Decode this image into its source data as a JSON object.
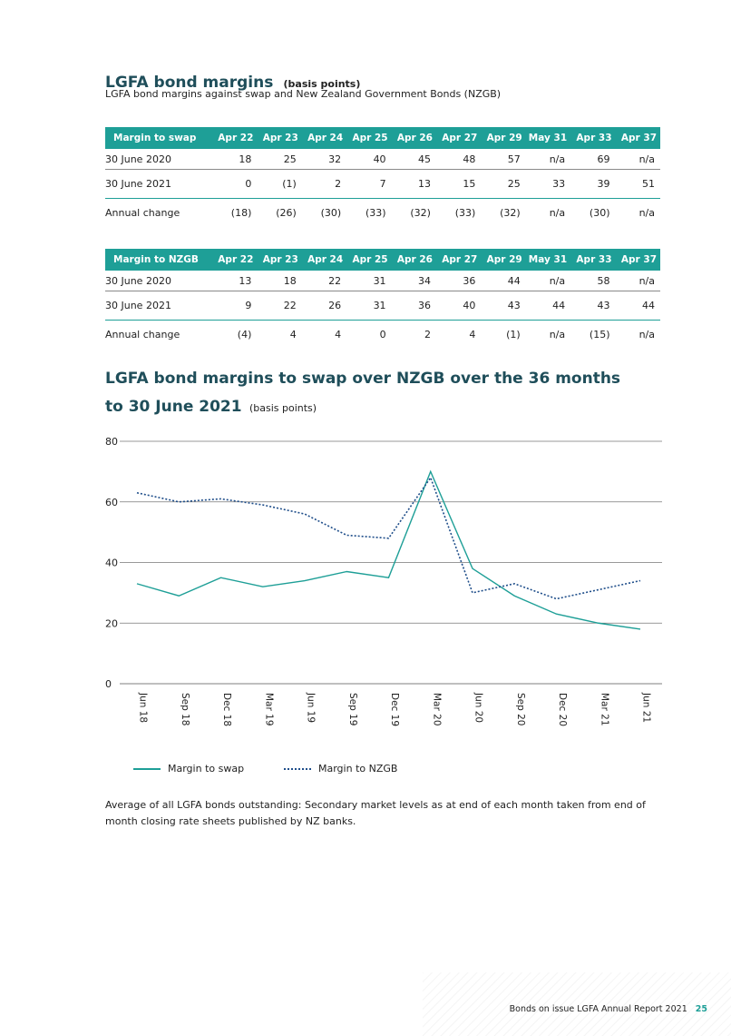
{
  "section": {
    "title": "LGFA bond margins",
    "title_suffix": "(basis points)",
    "subtitle": "LGFA bond margins against swap and New Zealand Government Bonds (NZGB)"
  },
  "tables": {
    "swap": {
      "headers": [
        "Margin to swap",
        "Apr 22",
        "Apr 23",
        "Apr 24",
        "Apr 25",
        "Apr 26",
        "Apr 27",
        "Apr 29",
        "May 31",
        "Apr 33",
        "Apr 37"
      ],
      "rows": [
        [
          "30 June 2020",
          "18",
          "25",
          "32",
          "40",
          "45",
          "48",
          "57",
          "n/a",
          "69",
          "n/a"
        ],
        [
          "30 June 2021",
          "0",
          "(1)",
          "2",
          "7",
          "13",
          "15",
          "25",
          "33",
          "39",
          "51"
        ],
        [
          "Annual change",
          "(18)",
          "(26)",
          "(30)",
          "(33)",
          "(32)",
          "(33)",
          "(32)",
          "n/a",
          "(30)",
          "n/a"
        ]
      ]
    },
    "nzgb": {
      "headers": [
        "Margin to NZGB",
        "Apr 22",
        "Apr 23",
        "Apr 24",
        "Apr 25",
        "Apr 26",
        "Apr 27",
        "Apr 29",
        "May 31",
        "Apr 33",
        "Apr 37"
      ],
      "rows": [
        [
          "30 June 2020",
          "13",
          "18",
          "22",
          "31",
          "34",
          "36",
          "44",
          "n/a",
          "58",
          "n/a"
        ],
        [
          "30 June 2021",
          "9",
          "22",
          "26",
          "31",
          "36",
          "40",
          "43",
          "44",
          "43",
          "44"
        ],
        [
          "Annual change",
          "(4)",
          "4",
          "4",
          "0",
          "2",
          "4",
          "(1)",
          "n/a",
          "(15)",
          "n/a"
        ]
      ]
    }
  },
  "chart_title": {
    "line1": "LGFA bond margins to swap over NZGB over the 36 months",
    "line2": "to 30 June 2021",
    "suffix": "(basis points)"
  },
  "chart_data": {
    "type": "line",
    "title": "LGFA bond margins to swap over NZGB over the 36 months to 30 June 2021",
    "xlabel": "",
    "ylabel": "basis points",
    "categories": [
      "Jun 18",
      "Sep 18",
      "Dec 18",
      "Mar 19",
      "Jun 19",
      "Sep 19",
      "Dec 19",
      "Mar 20",
      "Jun 20",
      "Sep 20",
      "Dec 20",
      "Mar 21",
      "Jun 21"
    ],
    "ylim": [
      0,
      80
    ],
    "yticks": [
      0,
      20,
      40,
      60,
      80
    ],
    "grid": true,
    "legend": "bottom-left",
    "series": [
      {
        "name": "Margin to swap",
        "style": "solid",
        "color": "#1e9f97",
        "values": [
          33,
          29,
          35,
          32,
          34,
          37,
          35,
          70,
          38,
          29,
          23,
          20,
          18
        ]
      },
      {
        "name": "Margin to NZGB",
        "style": "dotted",
        "color": "#1f4e8a",
        "values": [
          63,
          60,
          61,
          59,
          56,
          49,
          48,
          68,
          30,
          33,
          28,
          31,
          34
        ]
      }
    ]
  },
  "note": "Average of all LGFA bonds outstanding: Secondary market levels as at end of each month taken from end of month closing rate sheets published by NZ banks.",
  "footer": {
    "text": "Bonds on issue LGFA Annual Report 2021",
    "page": "25"
  }
}
